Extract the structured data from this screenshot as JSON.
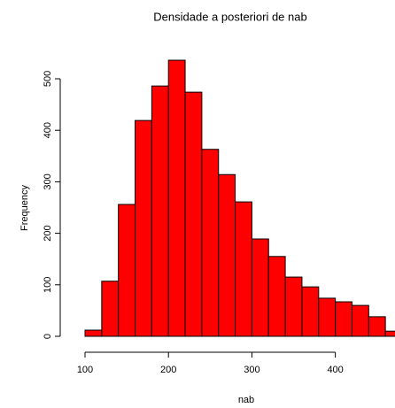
{
  "chart_data": {
    "type": "histogram",
    "title": "Densidade a posteriori de nab",
    "x_label": "nab",
    "y_label": "Frequency",
    "bins": [
      100,
      120,
      140,
      160,
      180,
      200,
      220,
      240,
      260,
      280,
      300,
      320,
      340,
      360,
      380,
      400,
      420,
      440,
      460,
      480
    ],
    "values": [
      12,
      107,
      256,
      419,
      486,
      536,
      474,
      363,
      314,
      261,
      189,
      155,
      115,
      96,
      74,
      67,
      60,
      38,
      10
    ],
    "color": "#ff0000",
    "xlim": [
      100,
      480
    ],
    "xticks": [
      100,
      200,
      300,
      400
    ],
    "ylim": [
      0,
      500
    ],
    "yticks": [
      0,
      100,
      200,
      300,
      400,
      500
    ]
  }
}
